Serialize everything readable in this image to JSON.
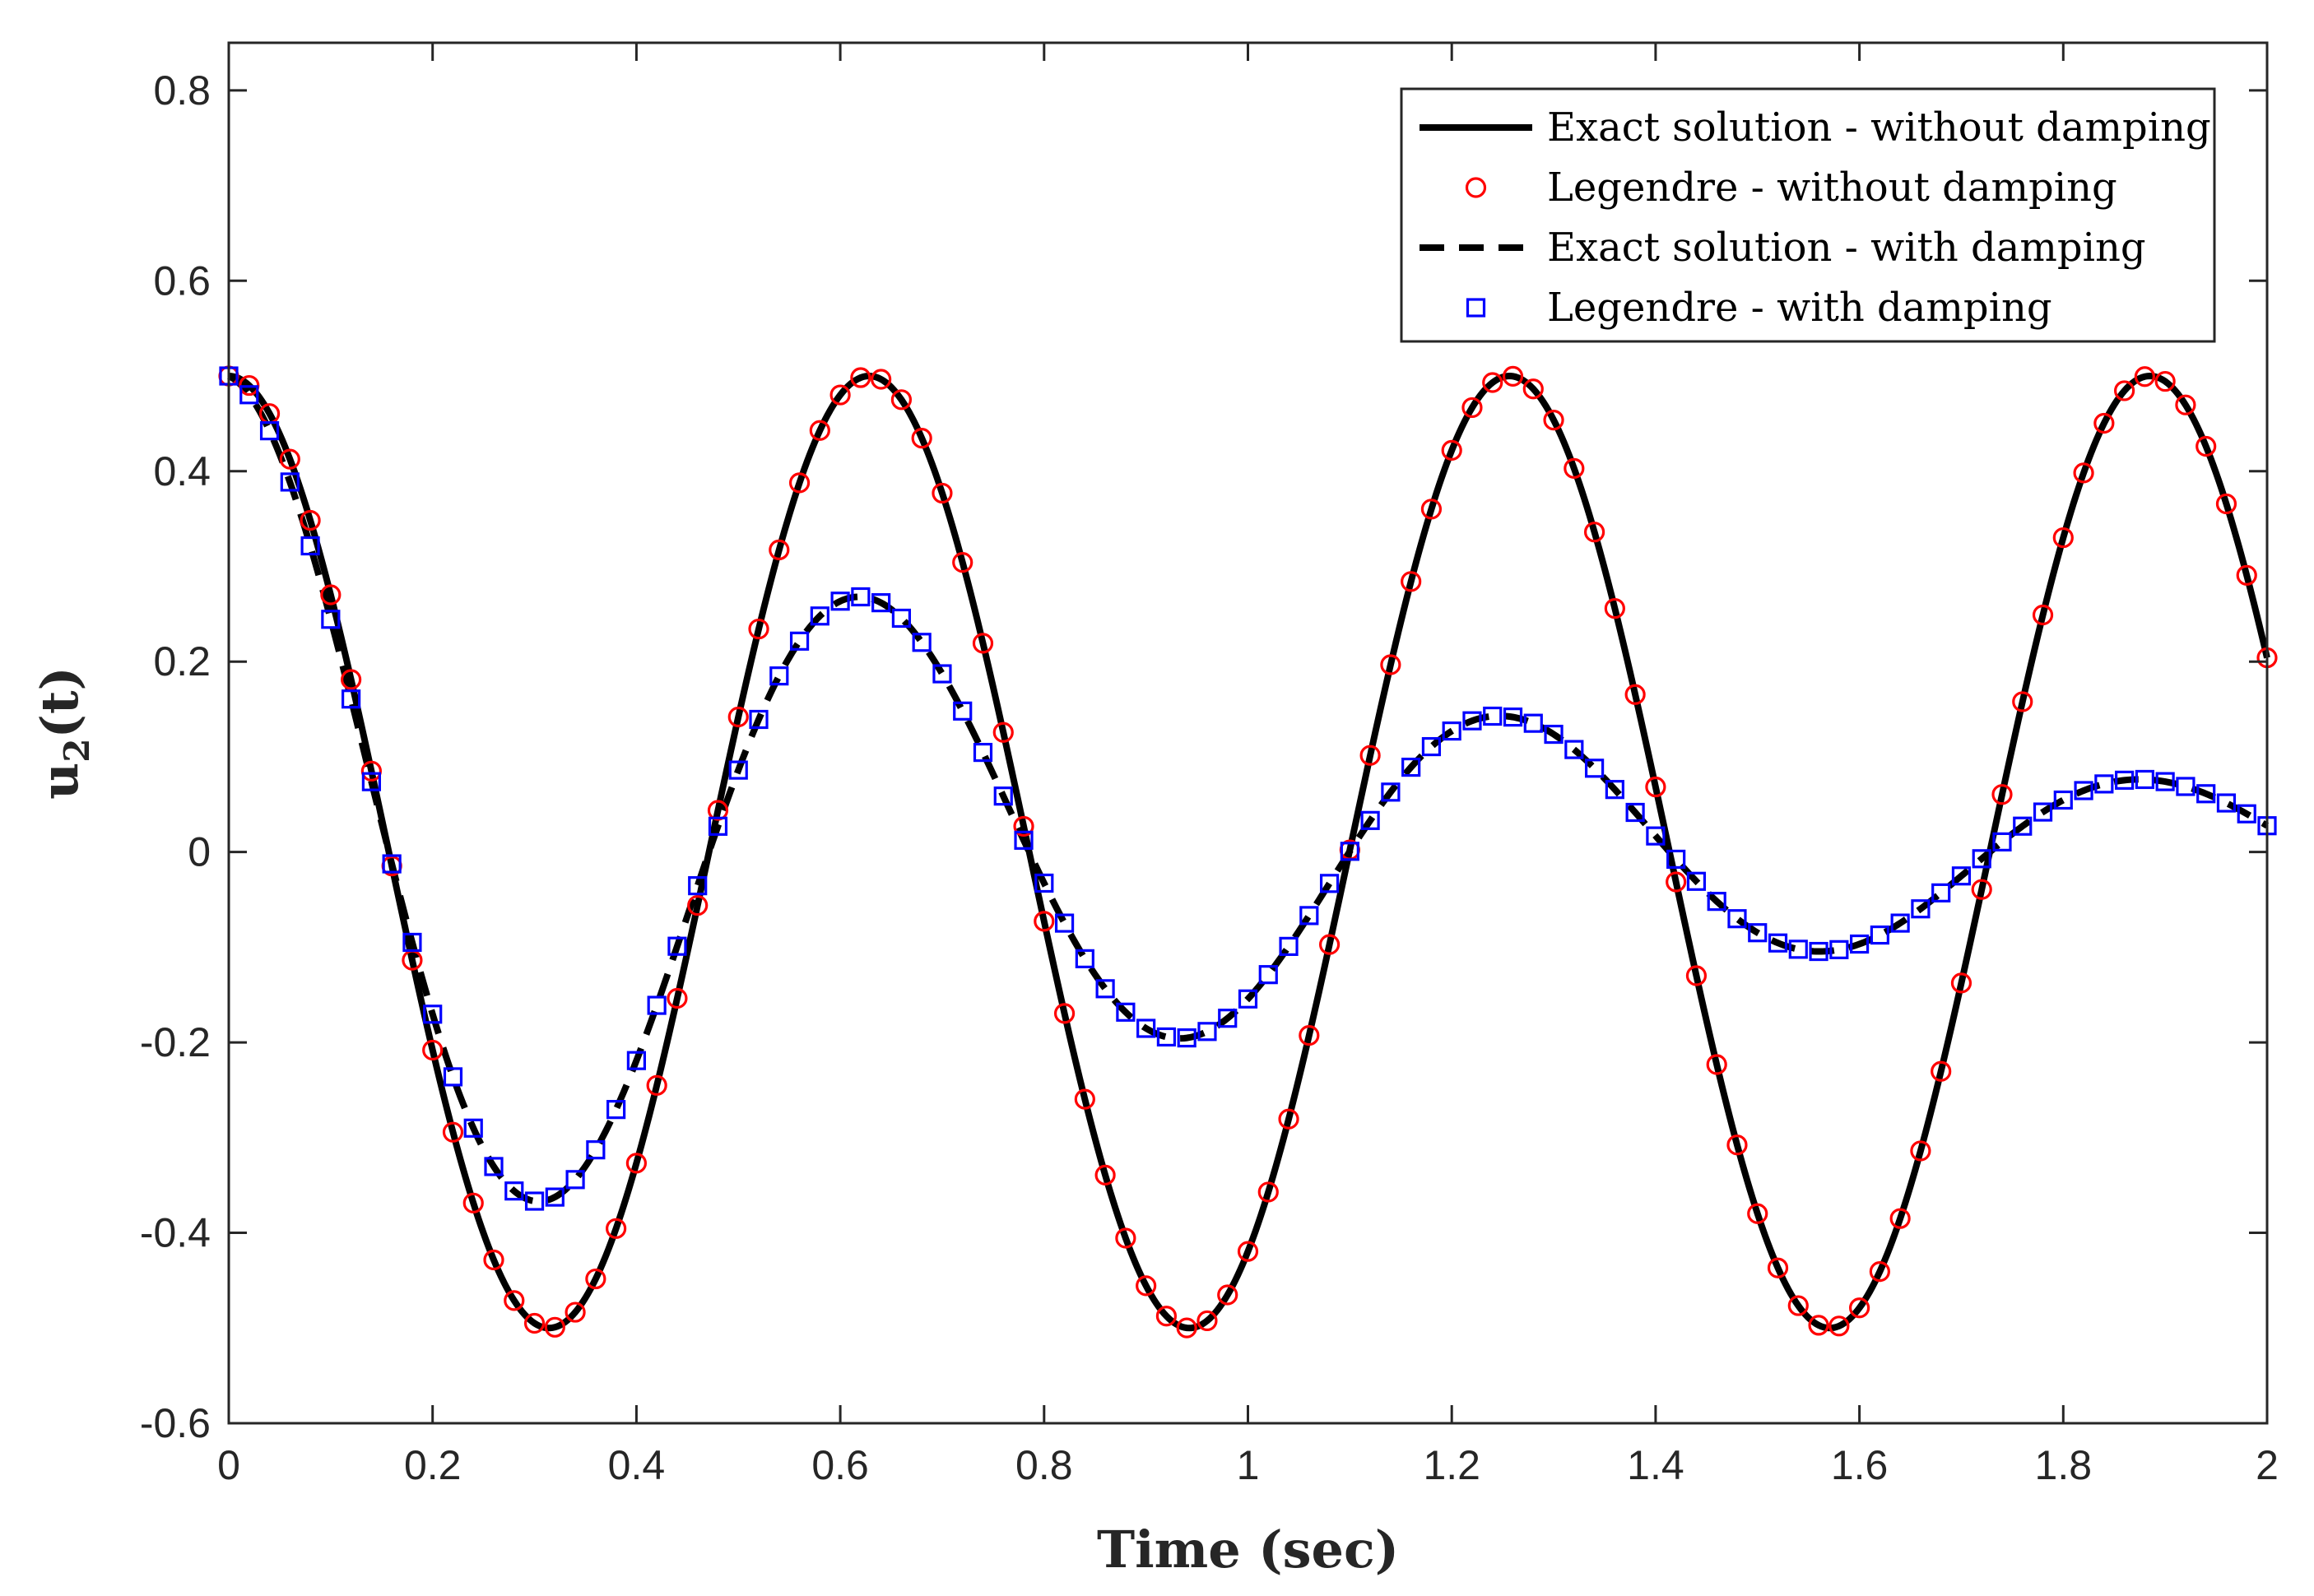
{
  "chart_data": {
    "type": "line",
    "title": "",
    "xlabel": "Time (sec)",
    "ylabel_main": "u",
    "ylabel_sub": "2",
    "ylabel_tail": "(t)",
    "xlim": [
      0,
      2
    ],
    "ylim": [
      -0.6,
      0.85
    ],
    "xticks": [
      0,
      0.2,
      0.4,
      0.6,
      0.8,
      1,
      1.2,
      1.4,
      1.6,
      1.8,
      2
    ],
    "xtick_labels": [
      "0",
      "0.2",
      "0.4",
      "0.6",
      "0.8",
      "1",
      "1.2",
      "1.4",
      "1.6",
      "1.8",
      "2"
    ],
    "yticks": [
      -0.6,
      -0.4,
      -0.2,
      0,
      0.2,
      0.4,
      0.6,
      0.8
    ],
    "ytick_labels": [
      "-0.6",
      "-0.4",
      "-0.2",
      "0",
      "0.2",
      "0.4",
      "0.6",
      "0.8"
    ],
    "grid": false,
    "legend_position": "top-right",
    "model": {
      "amplitude": 0.5,
      "angular_frequency": 10,
      "damping_decay": 1.0,
      "sample_step": 0.02
    },
    "series": [
      {
        "name": "Exact solution - without damping",
        "style": "solid",
        "color": "#000000"
      },
      {
        "name": "Legendre - without damping",
        "style": "circle",
        "color": "#ff0000"
      },
      {
        "name": "Exact solution - with damping",
        "style": "dashed",
        "color": "#000000"
      },
      {
        "name": "Legendre - with damping",
        "style": "square",
        "color": "#0000ff"
      }
    ]
  }
}
